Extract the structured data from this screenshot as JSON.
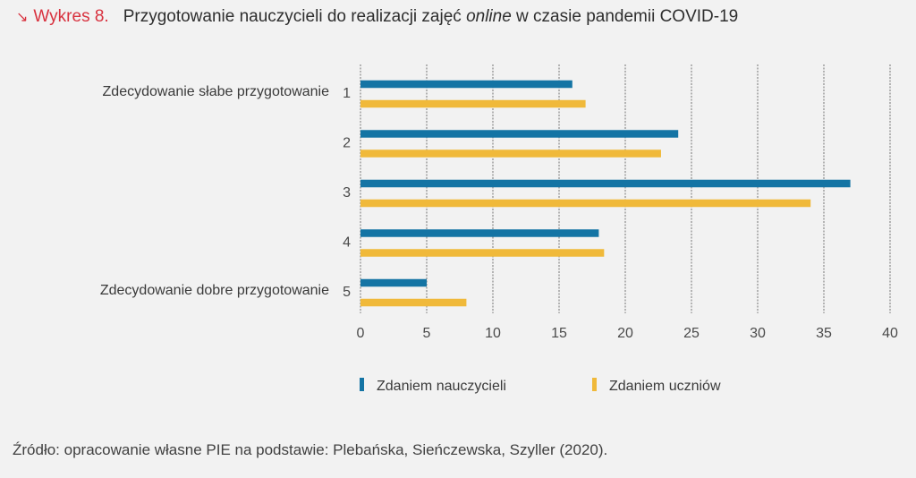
{
  "header": {
    "arrow_icon": "arrow-down-right",
    "label": "Wykres 8.",
    "title_before": "Przygotowanie nauczycieli do realizacji zajęć ",
    "title_italic": "online",
    "title_after": " w czasie pandemii COVID-19"
  },
  "source": "Źródło: opracowanie własne PIE na podstawie: Plebańska, Sieńczewska, Szyller (2020).",
  "chart_data": {
    "type": "bar",
    "orientation": "horizontal",
    "title": "Przygotowanie nauczycieli do realizacji zajęć online w czasie pandemii COVID-19",
    "categories": [
      "1",
      "2",
      "3",
      "4",
      "5"
    ],
    "category_annotations": {
      "1": "Zdecydowanie słabe przygotowanie",
      "5": "Zdecydowanie dobre przygotowanie"
    },
    "series": [
      {
        "name": "Zdaniem nauczycieli",
        "color": "#1474a4",
        "values": [
          16,
          24,
          37,
          18,
          5
        ]
      },
      {
        "name": "Zdaniem uczniów",
        "color": "#f0b93a",
        "values": [
          17,
          22.7,
          34,
          18.4,
          8
        ]
      }
    ],
    "xlim": [
      0,
      40
    ],
    "xticks": [
      0,
      5,
      10,
      15,
      20,
      25,
      30,
      35,
      40
    ],
    "xlabel": "",
    "ylabel": "",
    "grid": "vertical dashed",
    "legend_position": "bottom"
  }
}
